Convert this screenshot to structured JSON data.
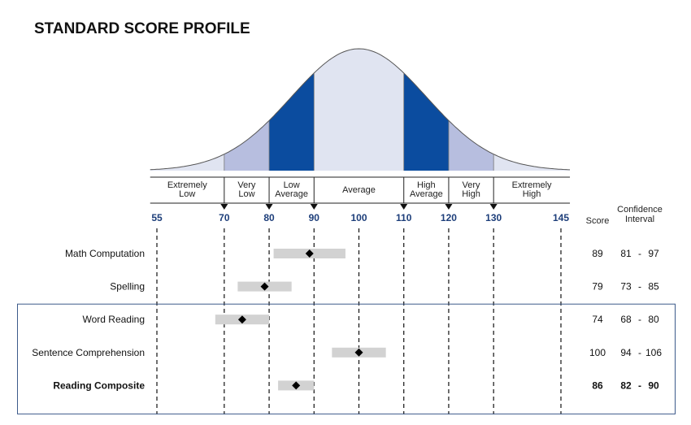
{
  "chart_data": {
    "type": "range-profile",
    "title": "STANDARD SCORE PROFILE",
    "x_ticks": [
      55,
      70,
      80,
      90,
      100,
      110,
      120,
      130,
      145
    ],
    "xlim": [
      55,
      145
    ],
    "bands": [
      {
        "label_lines": [
          "Extremely",
          "Low"
        ],
        "from": 55,
        "to": 70,
        "color": "#e0e4f1"
      },
      {
        "label_lines": [
          "Very",
          "Low"
        ],
        "from": 70,
        "to": 80,
        "color": "#b7bedf"
      },
      {
        "label_lines": [
          "Low",
          "Average"
        ],
        "from": 80,
        "to": 90,
        "color": "#0b4c9f"
      },
      {
        "label_lines": [
          "Average"
        ],
        "from": 90,
        "to": 110,
        "color": "#e0e4f1"
      },
      {
        "label_lines": [
          "High",
          "Average"
        ],
        "from": 110,
        "to": 120,
        "color": "#0b4c9f"
      },
      {
        "label_lines": [
          "Very",
          "High"
        ],
        "from": 120,
        "to": 130,
        "color": "#b7bedf"
      },
      {
        "label_lines": [
          "Extremely",
          "High"
        ],
        "from": 130,
        "to": 145,
        "color": "#e0e4f1"
      }
    ],
    "columns": {
      "score": "Score",
      "ci_lines": [
        "Confidence",
        "Interval"
      ]
    },
    "rows": [
      {
        "name": "Math Computation",
        "score": 89,
        "ci_low": 81,
        "ci_high": 97,
        "bold": false,
        "group": 0
      },
      {
        "name": "Spelling",
        "score": 79,
        "ci_low": 73,
        "ci_high": 85,
        "bold": false,
        "group": 0
      },
      {
        "name": "Word Reading",
        "score": 74,
        "ci_low": 68,
        "ci_high": 80,
        "bold": false,
        "group": 1
      },
      {
        "name": "Sentence Comprehension",
        "score": 100,
        "ci_low": 94,
        "ci_high": 106,
        "bold": false,
        "group": 1
      },
      {
        "name": "Reading Composite",
        "score": 86,
        "ci_low": 82,
        "ci_high": 90,
        "bold": true,
        "group": 1
      }
    ],
    "colors": {
      "tick_label": "#1d3e7a",
      "ci_bar": "#d2d2d2",
      "box": "#3c5a8a"
    }
  }
}
